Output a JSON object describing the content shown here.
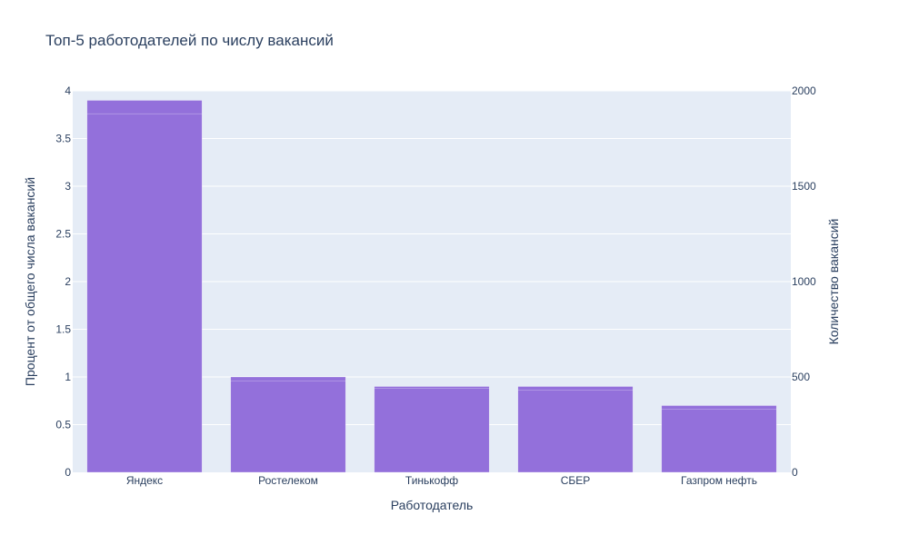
{
  "chart_data": {
    "type": "bar",
    "title": "Топ-5 работодателей по числу вакансий",
    "xlabel": "Работодатель",
    "ylabel": "Процент от общего числа вакансий",
    "y2label": "Количество вакансий",
    "categories": [
      "Яндекс",
      "Ростелеком",
      "Тинькофф",
      "СБЕР",
      "Газпром нефть"
    ],
    "series": [
      {
        "axis": "left",
        "values": [
          3.9,
          1.0,
          0.9,
          0.9,
          0.7
        ]
      },
      {
        "axis": "right",
        "values": [
          1880,
          480,
          440,
          430,
          330
        ]
      }
    ],
    "ylim": [
      0,
      4
    ],
    "yticks": [
      "0",
      "0.5",
      "1",
      "1.5",
      "2",
      "2.5",
      "3",
      "3.5",
      "4"
    ],
    "y2lim": [
      0,
      2000
    ],
    "y2ticks": [
      "0",
      "500",
      "1000",
      "1500",
      "2000"
    ],
    "colors": {
      "bar": "#9370DB",
      "plot_bg": "#E5ECF6",
      "grid": "#ffffff",
      "text": "#2a3f5f"
    },
    "grid": true
  }
}
